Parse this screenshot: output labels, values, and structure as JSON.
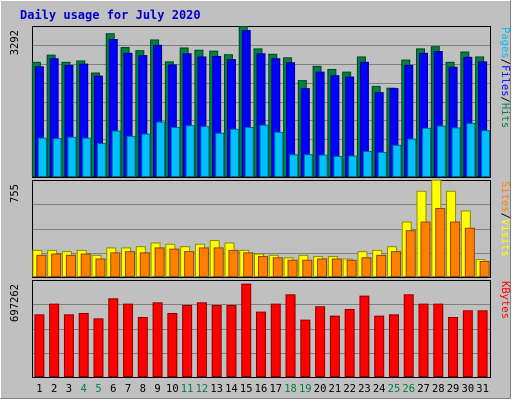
{
  "colors": {
    "background": "#C0C0C0",
    "title": "#0000CC",
    "axis_text": "#000000",
    "weekend_day": "#008040",
    "hits": "#008040",
    "files": "#0000FF",
    "pages": "#00C0FF",
    "visits": "#FFFF00",
    "sites": "#FF8000",
    "kbytes": "#FF0000",
    "separator": "#000000"
  },
  "chart_data": {
    "type": "bar",
    "title": "Daily usage for July 2020",
    "categories": [
      "1",
      "2",
      "3",
      "4",
      "5",
      "6",
      "7",
      "8",
      "9",
      "10",
      "11",
      "12",
      "13",
      "14",
      "15",
      "16",
      "17",
      "18",
      "19",
      "20",
      "21",
      "22",
      "23",
      "24",
      "25",
      "26",
      "27",
      "28",
      "29",
      "30",
      "31"
    ],
    "weekend_days": [
      "4",
      "5",
      "11",
      "12",
      "18",
      "19",
      "25",
      "26"
    ],
    "panels": [
      {
        "id": "hits_files_pages",
        "ylabel": "3292",
        "ymax": 3292,
        "legend": [
          {
            "name": "Pages",
            "color_key": "pages"
          },
          {
            "name": "/",
            "color_key": "separator"
          },
          {
            "name": "Files",
            "color_key": "files"
          },
          {
            "name": "/",
            "color_key": "separator"
          },
          {
            "name": "Hits",
            "color_key": "hits"
          }
        ],
        "series": [
          {
            "name": "Hits",
            "values": [
              2580,
              2740,
              2580,
              2610,
              2340,
              3220,
              2910,
              2840,
              3080,
              2590,
              2900,
              2850,
              2830,
              2750,
              3380,
              2880,
              2760,
              2680,
              2170,
              2490,
              2420,
              2360,
              2700,
              2040,
              2000,
              2630,
              2880,
              2930,
              2580,
              2810,
              2700
            ]
          },
          {
            "name": "Files",
            "values": [
              2480,
              2660,
              2510,
              2540,
              2270,
              3090,
              2780,
              2730,
              2960,
              2520,
              2770,
              2700,
              2710,
              2640,
              3290,
              2770,
              2660,
              2570,
              1990,
              2360,
              2280,
              2250,
              2580,
              1900,
              1990,
              2510,
              2780,
              2820,
              2470,
              2690,
              2590
            ]
          },
          {
            "name": "Pages",
            "values": [
              880,
              870,
              900,
              880,
              760,
              1040,
              920,
              970,
              1240,
              1120,
              1160,
              1140,
              990,
              1080,
              1120,
              1170,
              1010,
              510,
              510,
              500,
              470,
              480,
              580,
              560,
              720,
              860,
              1100,
              1150,
              1110,
              1210,
              1050
            ]
          }
        ]
      },
      {
        "id": "visits_sites",
        "ylabel": "755",
        "ymax": 755,
        "legend": [
          {
            "name": "Sites",
            "color_key": "sites"
          },
          {
            "name": "/",
            "color_key": "separator"
          },
          {
            "name": "Visits",
            "color_key": "visits"
          }
        ],
        "series": [
          {
            "name": "Visits",
            "values": [
              220,
              220,
              210,
              220,
              180,
              240,
              240,
              250,
              280,
              270,
              250,
              270,
              300,
              280,
              220,
              190,
              180,
              160,
              180,
              170,
              170,
              150,
              210,
              220,
              250,
              450,
              700,
              790,
              700,
              540,
              145
            ]
          },
          {
            "name": "Sites",
            "values": [
              180,
              190,
              180,
              190,
              150,
              200,
              210,
              200,
              240,
              230,
              210,
              240,
              240,
              220,
              200,
              170,
              160,
              140,
              140,
              150,
              150,
              140,
              160,
              180,
              210,
              380,
              450,
              560,
              450,
              400,
              130
            ]
          }
        ]
      },
      {
        "id": "kbytes",
        "ylabel": "697262",
        "ymax": 697262,
        "legend": [
          {
            "name": "KBytes",
            "color_key": "kbytes"
          }
        ],
        "series": [
          {
            "name": "KBytes",
            "values": [
              470000,
              550000,
              470000,
              480000,
              440000,
              590000,
              550000,
              450000,
              560000,
              480000,
              540000,
              560000,
              540000,
              540000,
              700000,
              490000,
              550000,
              620000,
              430000,
              530000,
              460000,
              510000,
              610000,
              460000,
              470000,
              620000,
              550000,
              550000,
              450000,
              500000,
              500000
            ]
          }
        ]
      }
    ]
  }
}
